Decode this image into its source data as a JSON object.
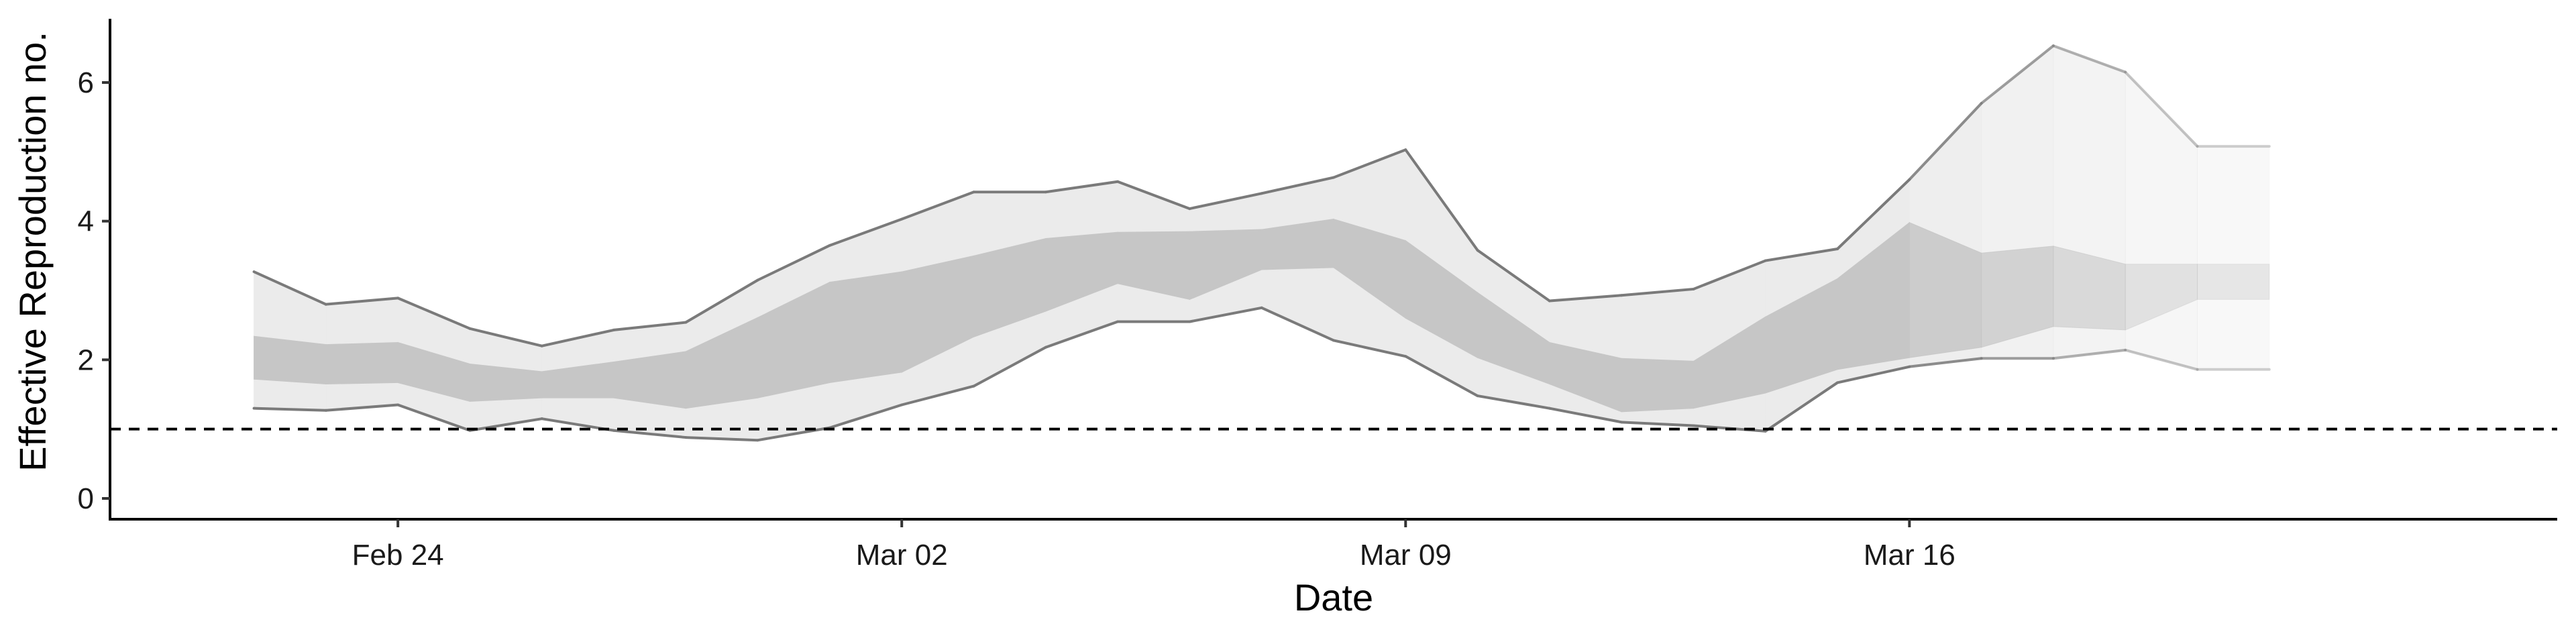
{
  "chart_data": {
    "type": "area",
    "xlabel": "Date",
    "ylabel": "Effective Reproduction no.",
    "x": [
      "2020-02-22",
      "2020-02-23",
      "2020-02-24",
      "2020-02-25",
      "2020-02-26",
      "2020-02-27",
      "2020-02-28",
      "2020-02-29",
      "2020-03-01",
      "2020-03-02",
      "2020-03-03",
      "2020-03-04",
      "2020-03-05",
      "2020-03-06",
      "2020-03-07",
      "2020-03-08",
      "2020-03-09",
      "2020-03-10",
      "2020-03-11",
      "2020-03-12",
      "2020-03-13",
      "2020-03-14",
      "2020-03-15",
      "2020-03-16",
      "2020-03-17",
      "2020-03-18",
      "2020-03-19",
      "2020-03-20",
      "2020-03-21"
    ],
    "x_ticks": [
      {
        "date": "2020-02-24",
        "label": "Feb 24"
      },
      {
        "date": "2020-03-02",
        "label": "Mar 02"
      },
      {
        "date": "2020-03-09",
        "label": "Mar 09"
      },
      {
        "date": "2020-03-16",
        "label": "Mar 16"
      }
    ],
    "x_range": [
      "2020-02-20",
      "2020-03-25"
    ],
    "y_ticks": [
      0,
      2,
      4,
      6
    ],
    "ylim": [
      -0.3,
      6.9
    ],
    "reference_line": {
      "y": 1,
      "style": "dashed",
      "color": "#000000"
    },
    "series": [
      {
        "band": "outer",
        "lower": [
          1.3,
          1.27,
          1.35,
          0.98,
          1.15,
          0.98,
          0.88,
          0.84,
          1.02,
          1.35,
          1.62,
          2.18,
          2.55,
          2.55,
          2.75,
          2.28,
          2.05,
          1.48,
          1.3,
          1.1,
          1.05,
          0.97,
          1.67,
          1.9,
          2.02,
          2.02,
          2.14,
          1.86,
          1.86
        ],
        "upper": [
          3.27,
          2.8,
          2.89,
          2.45,
          2.2,
          2.43,
          2.54,
          3.15,
          3.65,
          4.03,
          4.42,
          4.42,
          4.57,
          4.18,
          4.4,
          4.63,
          5.03,
          3.58,
          2.85,
          2.93,
          3.02,
          3.43,
          3.6,
          4.6,
          5.7,
          6.53,
          6.15,
          5.08,
          5.08
        ]
      },
      {
        "band": "inner",
        "lower": [
          1.72,
          1.65,
          1.67,
          1.4,
          1.45,
          1.45,
          1.3,
          1.45,
          1.67,
          1.82,
          2.33,
          2.7,
          3.1,
          2.87,
          3.3,
          3.33,
          2.6,
          2.03,
          1.65,
          1.25,
          1.3,
          1.52,
          1.86,
          2.03,
          2.18,
          2.48,
          2.43,
          2.87,
          2.87
        ],
        "upper": [
          2.34,
          2.22,
          2.25,
          1.94,
          1.83,
          1.97,
          2.12,
          2.61,
          3.12,
          3.27,
          3.5,
          3.75,
          3.84,
          3.85,
          3.88,
          4.03,
          3.72,
          2.97,
          2.25,
          2.02,
          1.98,
          2.62,
          3.17,
          3.98,
          3.54,
          3.64,
          3.38,
          3.38,
          3.38
        ]
      }
    ],
    "forecast_start": "2020-03-16",
    "colors": {
      "outer_band": "#ebebeb",
      "inner_band": "#c6c6c6",
      "outline": "#7a7a7a",
      "axis": "#000000"
    }
  }
}
